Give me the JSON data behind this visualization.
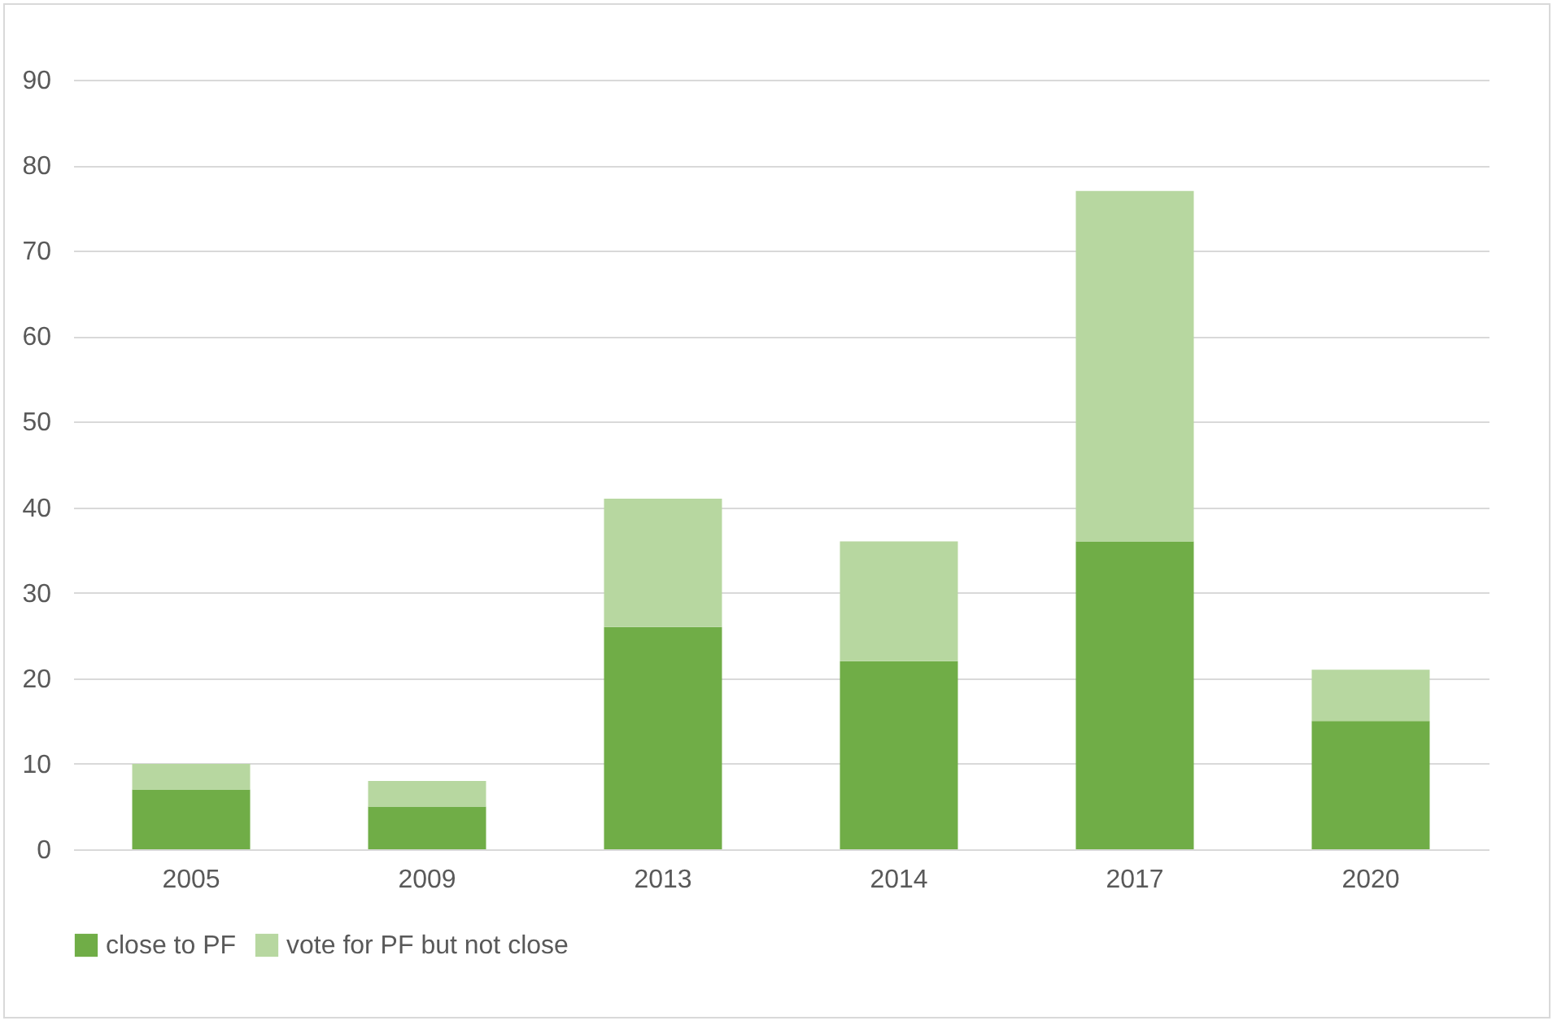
{
  "chart_data": {
    "type": "bar",
    "stacked": true,
    "categories": [
      "2005",
      "2009",
      "2013",
      "2014",
      "2017",
      "2020"
    ],
    "series": [
      {
        "name": "close to PF",
        "color": "#70ad47",
        "values": [
          7,
          5,
          26,
          22,
          36,
          15
        ]
      },
      {
        "name": "vote for PF but not close",
        "color": "#b7d7a0",
        "values": [
          3,
          3,
          15,
          14,
          41,
          6
        ]
      }
    ],
    "ylim": [
      0,
      90
    ],
    "yticks": [
      0,
      10,
      20,
      30,
      40,
      50,
      60,
      70,
      80,
      90
    ],
    "grid": "y",
    "legend": "bottom"
  }
}
